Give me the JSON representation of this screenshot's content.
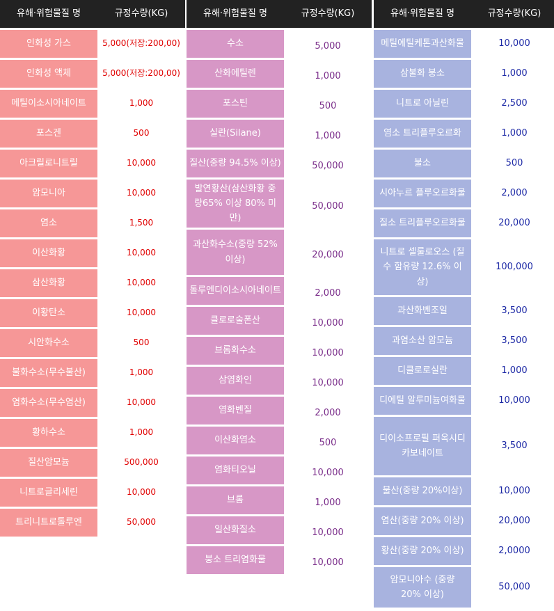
{
  "headers": {
    "name": "유해·위험물질 명",
    "qty": "규정수량(KG)"
  },
  "colors": {
    "header_bg": "#222222",
    "group1_bg": "#f69797",
    "group2_bg": "#d797c6",
    "group3_bg": "#a8b3df",
    "group1_qty": "#e00000",
    "group2_qty": "#7a2d8a",
    "group3_qty": "#1e2aa6"
  },
  "groups": [
    {
      "rows": [
        {
          "name": "인화성 가스",
          "qty": "5,000(저장:200,00)"
        },
        {
          "name": "인화성 액체",
          "qty": "5,000(저장:200,00)"
        },
        {
          "name": "메틸이소시아네이트",
          "qty": "1,000"
        },
        {
          "name": "포스겐",
          "qty": "500"
        },
        {
          "name": "아크릴로니트릴",
          "qty": "10,000"
        },
        {
          "name": "암모니아",
          "qty": "10,000"
        },
        {
          "name": "염소",
          "qty": "1,500"
        },
        {
          "name": "이산화황",
          "qty": "10,000"
        },
        {
          "name": "삼산화황",
          "qty": "10,000"
        },
        {
          "name": "이황탄소",
          "qty": "10,000"
        },
        {
          "name": "시안화수소",
          "qty": "500"
        },
        {
          "name": "불화수소(무수불산)",
          "qty": "1,000"
        },
        {
          "name": "염화수소(무수염산)",
          "qty": "10,000"
        },
        {
          "name": "황하수소",
          "qty": "1,000"
        },
        {
          "name": "질산암모늄",
          "qty": "500,000"
        },
        {
          "name": "니트로글리세린",
          "qty": "10,000"
        },
        {
          "name": "트리니트로톨루엔",
          "qty": "50,000"
        }
      ]
    },
    {
      "rows": [
        {
          "name": "수소",
          "qty": "5,000"
        },
        {
          "name": "산화에틸렌",
          "qty": "1,000"
        },
        {
          "name": "포스틴",
          "qty": "500"
        },
        {
          "name": "실란(Silane)",
          "qty": "1,000"
        },
        {
          "name": "질산(중량 94.5% 이상)",
          "qty": "50,000"
        },
        {
          "name": "발연황산(삼산화황 중량65% 이상 80% 미만)",
          "qty": "50,000"
        },
        {
          "name": "과산화수소(중량 52% 이상)",
          "qty": "20,000"
        },
        {
          "name": "톨루엔디이소시아네이트",
          "qty": "2,000"
        },
        {
          "name": "클로로술폰산",
          "qty": "10,000"
        },
        {
          "name": "브롬화수소",
          "qty": "10,000"
        },
        {
          "name": "삼염화인",
          "qty": "10,000"
        },
        {
          "name": "염화벤질",
          "qty": "2,000"
        },
        {
          "name": "이산화염소",
          "qty": "500"
        },
        {
          "name": "염화티오닐",
          "qty": "10,000"
        },
        {
          "name": "브롬",
          "qty": "1,000"
        },
        {
          "name": "일산화질소",
          "qty": "10,000"
        },
        {
          "name": "붕소 트리염화물",
          "qty": "10,000"
        }
      ]
    },
    {
      "rows": [
        {
          "name": "메틸에틸케톤과산화물",
          "qty": "10,000"
        },
        {
          "name": "삼불화 붕소",
          "qty": "1,000"
        },
        {
          "name": "니트로 아닐린",
          "qty": "2,500"
        },
        {
          "name": "염소 트리플루오르화",
          "qty": "1,000"
        },
        {
          "name": "불소",
          "qty": "500"
        },
        {
          "name": "시아누르 플루오르화물",
          "qty": "2,000"
        },
        {
          "name": "질소 트리플루오르화물",
          "qty": "20,000"
        },
        {
          "name": "니트로 셀룰로오스 (질수 함유량 12.6% 이상)",
          "qty": "100,000"
        },
        {
          "name": "과산화벤조일",
          "qty": "3,500"
        },
        {
          "name": "과염소산 암모늄",
          "qty": "3,500"
        },
        {
          "name": "디클로로실란",
          "qty": "1,000"
        },
        {
          "name": "디에틸 알루미늄여화물",
          "qty": "10,000"
        },
        {
          "name": "디이소프로필 퍼옥시디카보네이트",
          "qty": "3,500"
        },
        {
          "name": "불산(중량 20%이상)",
          "qty": "10,000"
        },
        {
          "name": "염산(중량 20% 이상)",
          "qty": "20,000"
        },
        {
          "name": "황산(중량 20% 이상)",
          "qty": "2,0000"
        },
        {
          "name": "암모니아수 (중량 20% 이상)",
          "qty": "50,000"
        }
      ]
    }
  ]
}
